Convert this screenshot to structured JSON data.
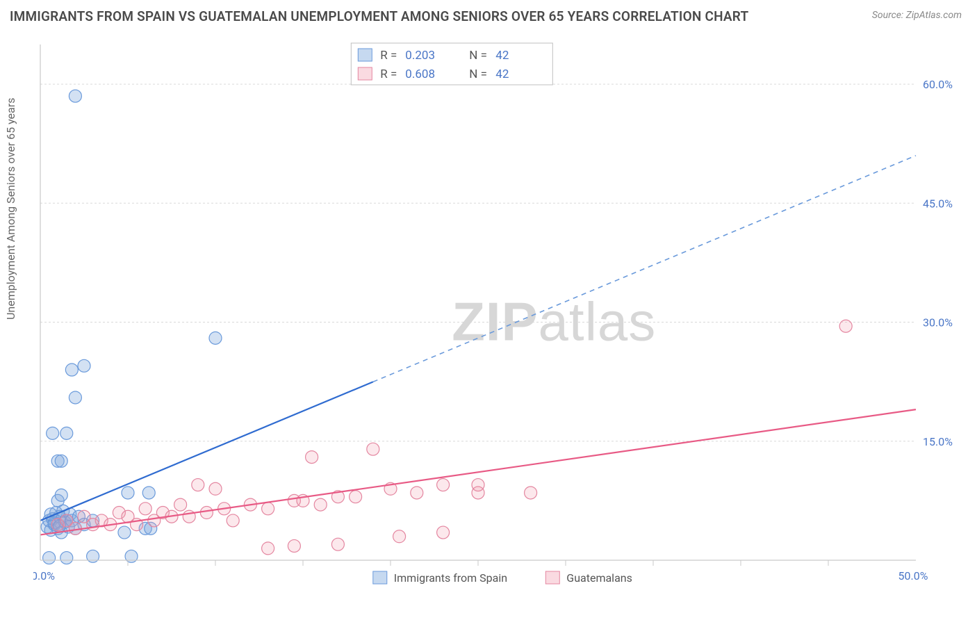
{
  "title": "IMMIGRANTS FROM SPAIN VS GUATEMALAN UNEMPLOYMENT AMONG SENIORS OVER 65 YEARS CORRELATION CHART",
  "source": "Source: ZipAtlas.com",
  "ylabel": "Unemployment Among Seniors over 65 years",
  "watermark_1": "ZIP",
  "watermark_2": "atlas",
  "chart": {
    "type": "scatter-with-trend",
    "background_color": "#ffffff",
    "grid_color": "#d9d9d9",
    "axis_color": "#c9c9c9",
    "tick_label_color": "#4a76c7",
    "text_color": "#666666",
    "marker_radius": 9,
    "xlim": [
      0,
      50
    ],
    "ylim": [
      0,
      65
    ],
    "x_ticks_minor_count": 10,
    "x_tick_labels": [
      {
        "v": 0,
        "label": "0.0%"
      },
      {
        "v": 50,
        "label": "50.0%"
      }
    ],
    "y_grid": [
      15,
      30,
      45,
      60
    ],
    "y_tick_labels": [
      {
        "v": 15,
        "label": "15.0%"
      },
      {
        "v": 30,
        "label": "30.0%"
      },
      {
        "v": 45,
        "label": "45.0%"
      },
      {
        "v": 60,
        "label": "60.0%"
      }
    ],
    "legend_top": {
      "rows": [
        {
          "swatch": "blue",
          "r_label": "R =",
          "r": "0.203",
          "n_label": "N =",
          "n": "42"
        },
        {
          "swatch": "pink",
          "r_label": "R =",
          "r": "0.608",
          "n_label": "N =",
          "n": "42"
        }
      ]
    },
    "legend_bottom": {
      "items": [
        {
          "swatch": "blue",
          "label": "Immigrants from Spain"
        },
        {
          "swatch": "pink",
          "label": "Guatemalans"
        }
      ]
    },
    "series_blue": {
      "color_fill": "rgba(129,170,222,0.35)",
      "color_stroke": "#6a9adb",
      "trend_color": "#2f6bd0",
      "trend": {
        "x1": 0,
        "y1": 5.0,
        "x2": 50,
        "y2": 51.0,
        "solid_to_x": 19
      },
      "points": [
        [
          0.4,
          4.2
        ],
        [
          0.5,
          5.0
        ],
        [
          0.6,
          3.8
        ],
        [
          0.7,
          5.2
        ],
        [
          0.8,
          4.5
        ],
        [
          0.9,
          6.0
        ],
        [
          1.0,
          4.0
        ],
        [
          1.1,
          5.5
        ],
        [
          1.2,
          3.5
        ],
        [
          1.3,
          6.2
        ],
        [
          1.4,
          4.8
        ],
        [
          1.5,
          5.0
        ],
        [
          1.6,
          4.2
        ],
        [
          1.7,
          5.8
        ],
        [
          1.0,
          7.5
        ],
        [
          1.2,
          8.2
        ],
        [
          1.8,
          5.0
        ],
        [
          2.0,
          4.0
        ],
        [
          2.2,
          5.5
        ],
        [
          2.5,
          4.5
        ],
        [
          3.0,
          5.0
        ],
        [
          0.5,
          0.3
        ],
        [
          1.5,
          0.3
        ],
        [
          3.0,
          0.5
        ],
        [
          5.2,
          0.5
        ],
        [
          4.8,
          3.5
        ],
        [
          5.0,
          8.5
        ],
        [
          6.0,
          4.0
        ],
        [
          6.3,
          4.0
        ],
        [
          6.2,
          8.5
        ],
        [
          1.0,
          12.5
        ],
        [
          1.2,
          12.5
        ],
        [
          0.7,
          16.0
        ],
        [
          1.5,
          16.0
        ],
        [
          2.0,
          20.5
        ],
        [
          1.8,
          24.0
        ],
        [
          2.5,
          24.5
        ],
        [
          10.0,
          28.0
        ],
        [
          2.0,
          58.5
        ],
        [
          0.8,
          4.7
        ],
        [
          1.1,
          4.3
        ],
        [
          0.6,
          5.8
        ]
      ]
    },
    "series_pink": {
      "color_fill": "rgba(240,150,170,0.22)",
      "color_stroke": "#e486a0",
      "trend_color": "#e85a85",
      "trend": {
        "x1": 0,
        "y1": 3.2,
        "x2": 50,
        "y2": 19.0
      },
      "points": [
        [
          1.0,
          4.5
        ],
        [
          1.5,
          5.0
        ],
        [
          2.0,
          4.0
        ],
        [
          2.5,
          5.5
        ],
        [
          3.0,
          4.5
        ],
        [
          3.5,
          5.0
        ],
        [
          4.0,
          4.5
        ],
        [
          4.5,
          6.0
        ],
        [
          5.0,
          5.5
        ],
        [
          5.5,
          4.5
        ],
        [
          6.0,
          6.5
        ],
        [
          6.5,
          5.0
        ],
        [
          7.0,
          6.0
        ],
        [
          7.5,
          5.5
        ],
        [
          8.0,
          7.0
        ],
        [
          8.5,
          5.5
        ],
        [
          9.0,
          9.5
        ],
        [
          9.5,
          6.0
        ],
        [
          10.0,
          9.0
        ],
        [
          10.5,
          6.5
        ],
        [
          12.0,
          7.0
        ],
        [
          13.0,
          6.5
        ],
        [
          13.0,
          1.5
        ],
        [
          14.5,
          7.5
        ],
        [
          14.5,
          1.8
        ],
        [
          15.0,
          7.5
        ],
        [
          15.5,
          13.0
        ],
        [
          16.0,
          7.0
        ],
        [
          17.0,
          2.0
        ],
        [
          17.0,
          8.0
        ],
        [
          18.0,
          8.0
        ],
        [
          19.0,
          14.0
        ],
        [
          20.0,
          9.0
        ],
        [
          20.5,
          3.0
        ],
        [
          21.5,
          8.5
        ],
        [
          23.0,
          9.5
        ],
        [
          23.0,
          3.5
        ],
        [
          25.0,
          8.5
        ],
        [
          25.0,
          9.5
        ],
        [
          28.0,
          8.5
        ],
        [
          46.0,
          29.5
        ],
        [
          11.0,
          5.0
        ]
      ]
    }
  }
}
